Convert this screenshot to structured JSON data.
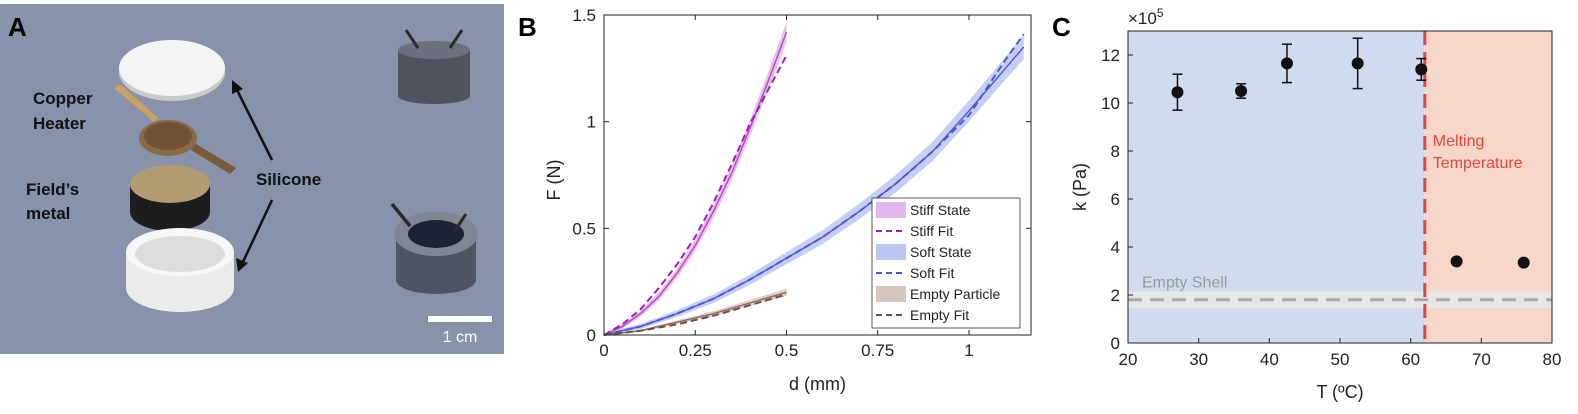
{
  "panels": {
    "a": {
      "letter": "A",
      "labels": {
        "copper_heater_1": "Copper",
        "copper_heater_2": "Heater",
        "fields_metal_1": "Field’s",
        "fields_metal_2": "metal",
        "silicone": "Silicone",
        "scale_bar": "1 cm"
      },
      "colors": {
        "background": "#8792ab",
        "white_part": "#f3f3f3",
        "metal_top": "#b49a73",
        "metal_side": "#1d1d1d",
        "copper": "#8a6a43"
      }
    },
    "b": {
      "letter": "B"
    },
    "c": {
      "letter": "C"
    }
  },
  "chart_data": [
    {
      "type": "line",
      "panel": "B",
      "xlabel": "d (mm)",
      "ylabel": "F (N)",
      "xlim": [
        0,
        1.17
      ],
      "ylim": [
        0,
        1.5
      ],
      "xticks": [
        0,
        0.25,
        0.5,
        0.75,
        1
      ],
      "xtick_labels": [
        "0",
        "0.25",
        "0.5",
        "0.75",
        "1"
      ],
      "yticks": [
        0,
        0.5,
        1,
        1.5
      ],
      "ytick_labels": [
        "0",
        "0.5",
        "1",
        "1.5"
      ],
      "legend_position": "bottom-right",
      "series": [
        {
          "name": "Stiff State",
          "kind": "band",
          "color": "#bf40bf",
          "band_color": "#e2b6ea",
          "x": [
            0,
            0.05,
            0.1,
            0.15,
            0.2,
            0.25,
            0.3,
            0.35,
            0.4,
            0.45,
            0.5
          ],
          "y": [
            0,
            0.04,
            0.1,
            0.18,
            0.29,
            0.42,
            0.58,
            0.76,
            0.97,
            1.19,
            1.42
          ],
          "band": 0.04
        },
        {
          "name": "Stiff Fit",
          "kind": "dashed",
          "color": "#9b1fbf",
          "x": [
            0,
            0.05,
            0.1,
            0.15,
            0.2,
            0.25,
            0.3,
            0.35,
            0.4,
            0.45,
            0.5
          ],
          "y": [
            0,
            0.05,
            0.12,
            0.22,
            0.33,
            0.46,
            0.62,
            0.8,
            0.99,
            1.15,
            1.31
          ]
        },
        {
          "name": "Soft State",
          "kind": "band",
          "color": "#4a58d8",
          "band_color": "#bcc6ef",
          "x": [
            0,
            0.1,
            0.2,
            0.3,
            0.4,
            0.5,
            0.6,
            0.7,
            0.8,
            0.9,
            1.0,
            1.1,
            1.15
          ],
          "y": [
            0,
            0.04,
            0.1,
            0.17,
            0.26,
            0.36,
            0.46,
            0.58,
            0.71,
            0.86,
            1.05,
            1.25,
            1.35
          ],
          "band": 0.05
        },
        {
          "name": "Soft Fit",
          "kind": "dashed",
          "color": "#4a58d8",
          "x": [
            0,
            0.1,
            0.2,
            0.3,
            0.4,
            0.5,
            0.6,
            0.7,
            0.8,
            0.9,
            1.0,
            1.1,
            1.15
          ],
          "y": [
            0,
            0.04,
            0.1,
            0.17,
            0.26,
            0.36,
            0.46,
            0.58,
            0.71,
            0.86,
            1.03,
            1.29,
            1.41
          ]
        },
        {
          "name": "Empty Particle",
          "kind": "band",
          "color": "#8a6a5e",
          "band_color": "#d5c5bc",
          "x": [
            0,
            0.1,
            0.2,
            0.3,
            0.4,
            0.5
          ],
          "y": [
            0,
            0.02,
            0.06,
            0.1,
            0.15,
            0.2
          ],
          "band": 0.015
        },
        {
          "name": "Empty Fit",
          "kind": "dashed",
          "color": "#6e5040",
          "x": [
            0,
            0.1,
            0.2,
            0.3,
            0.4,
            0.5
          ],
          "y": [
            0,
            0.02,
            0.05,
            0.09,
            0.14,
            0.19
          ]
        }
      ]
    },
    {
      "type": "scatter",
      "panel": "C",
      "xlabel": "T (ºC)",
      "ylabel": "k (Pa)",
      "exponent_label": "×10",
      "exponent_power": "5",
      "xlim": [
        20,
        80
      ],
      "ylim": [
        0,
        13
      ],
      "xticks": [
        20,
        30,
        40,
        50,
        60,
        70,
        80
      ],
      "xtick_labels": [
        "20",
        "30",
        "40",
        "50",
        "60",
        "70",
        "80"
      ],
      "yticks": [
        0,
        2,
        4,
        6,
        8,
        10,
        12
      ],
      "ytick_labels": [
        "0",
        "2",
        "4",
        "6",
        "8",
        "10",
        "12"
      ],
      "melting_temperature_x": 62,
      "melting_label_1": "Melting",
      "melting_label_2": "Temperature",
      "empty_shell_label": "Empty Shell",
      "empty_shell_value": 1.8,
      "empty_shell_band": [
        1.45,
        2.15
      ],
      "region_colors": {
        "soft": "#d0dbef",
        "stiff": "#f5d6c8"
      },
      "x": [
        27,
        36,
        42.5,
        52.5,
        61.5,
        66.5,
        76
      ],
      "y": [
        10.45,
        10.5,
        11.65,
        11.65,
        11.4,
        3.4,
        3.35
      ],
      "yerr": [
        0.75,
        0.3,
        0.8,
        1.05,
        0.45,
        0.05,
        0.05
      ]
    }
  ]
}
